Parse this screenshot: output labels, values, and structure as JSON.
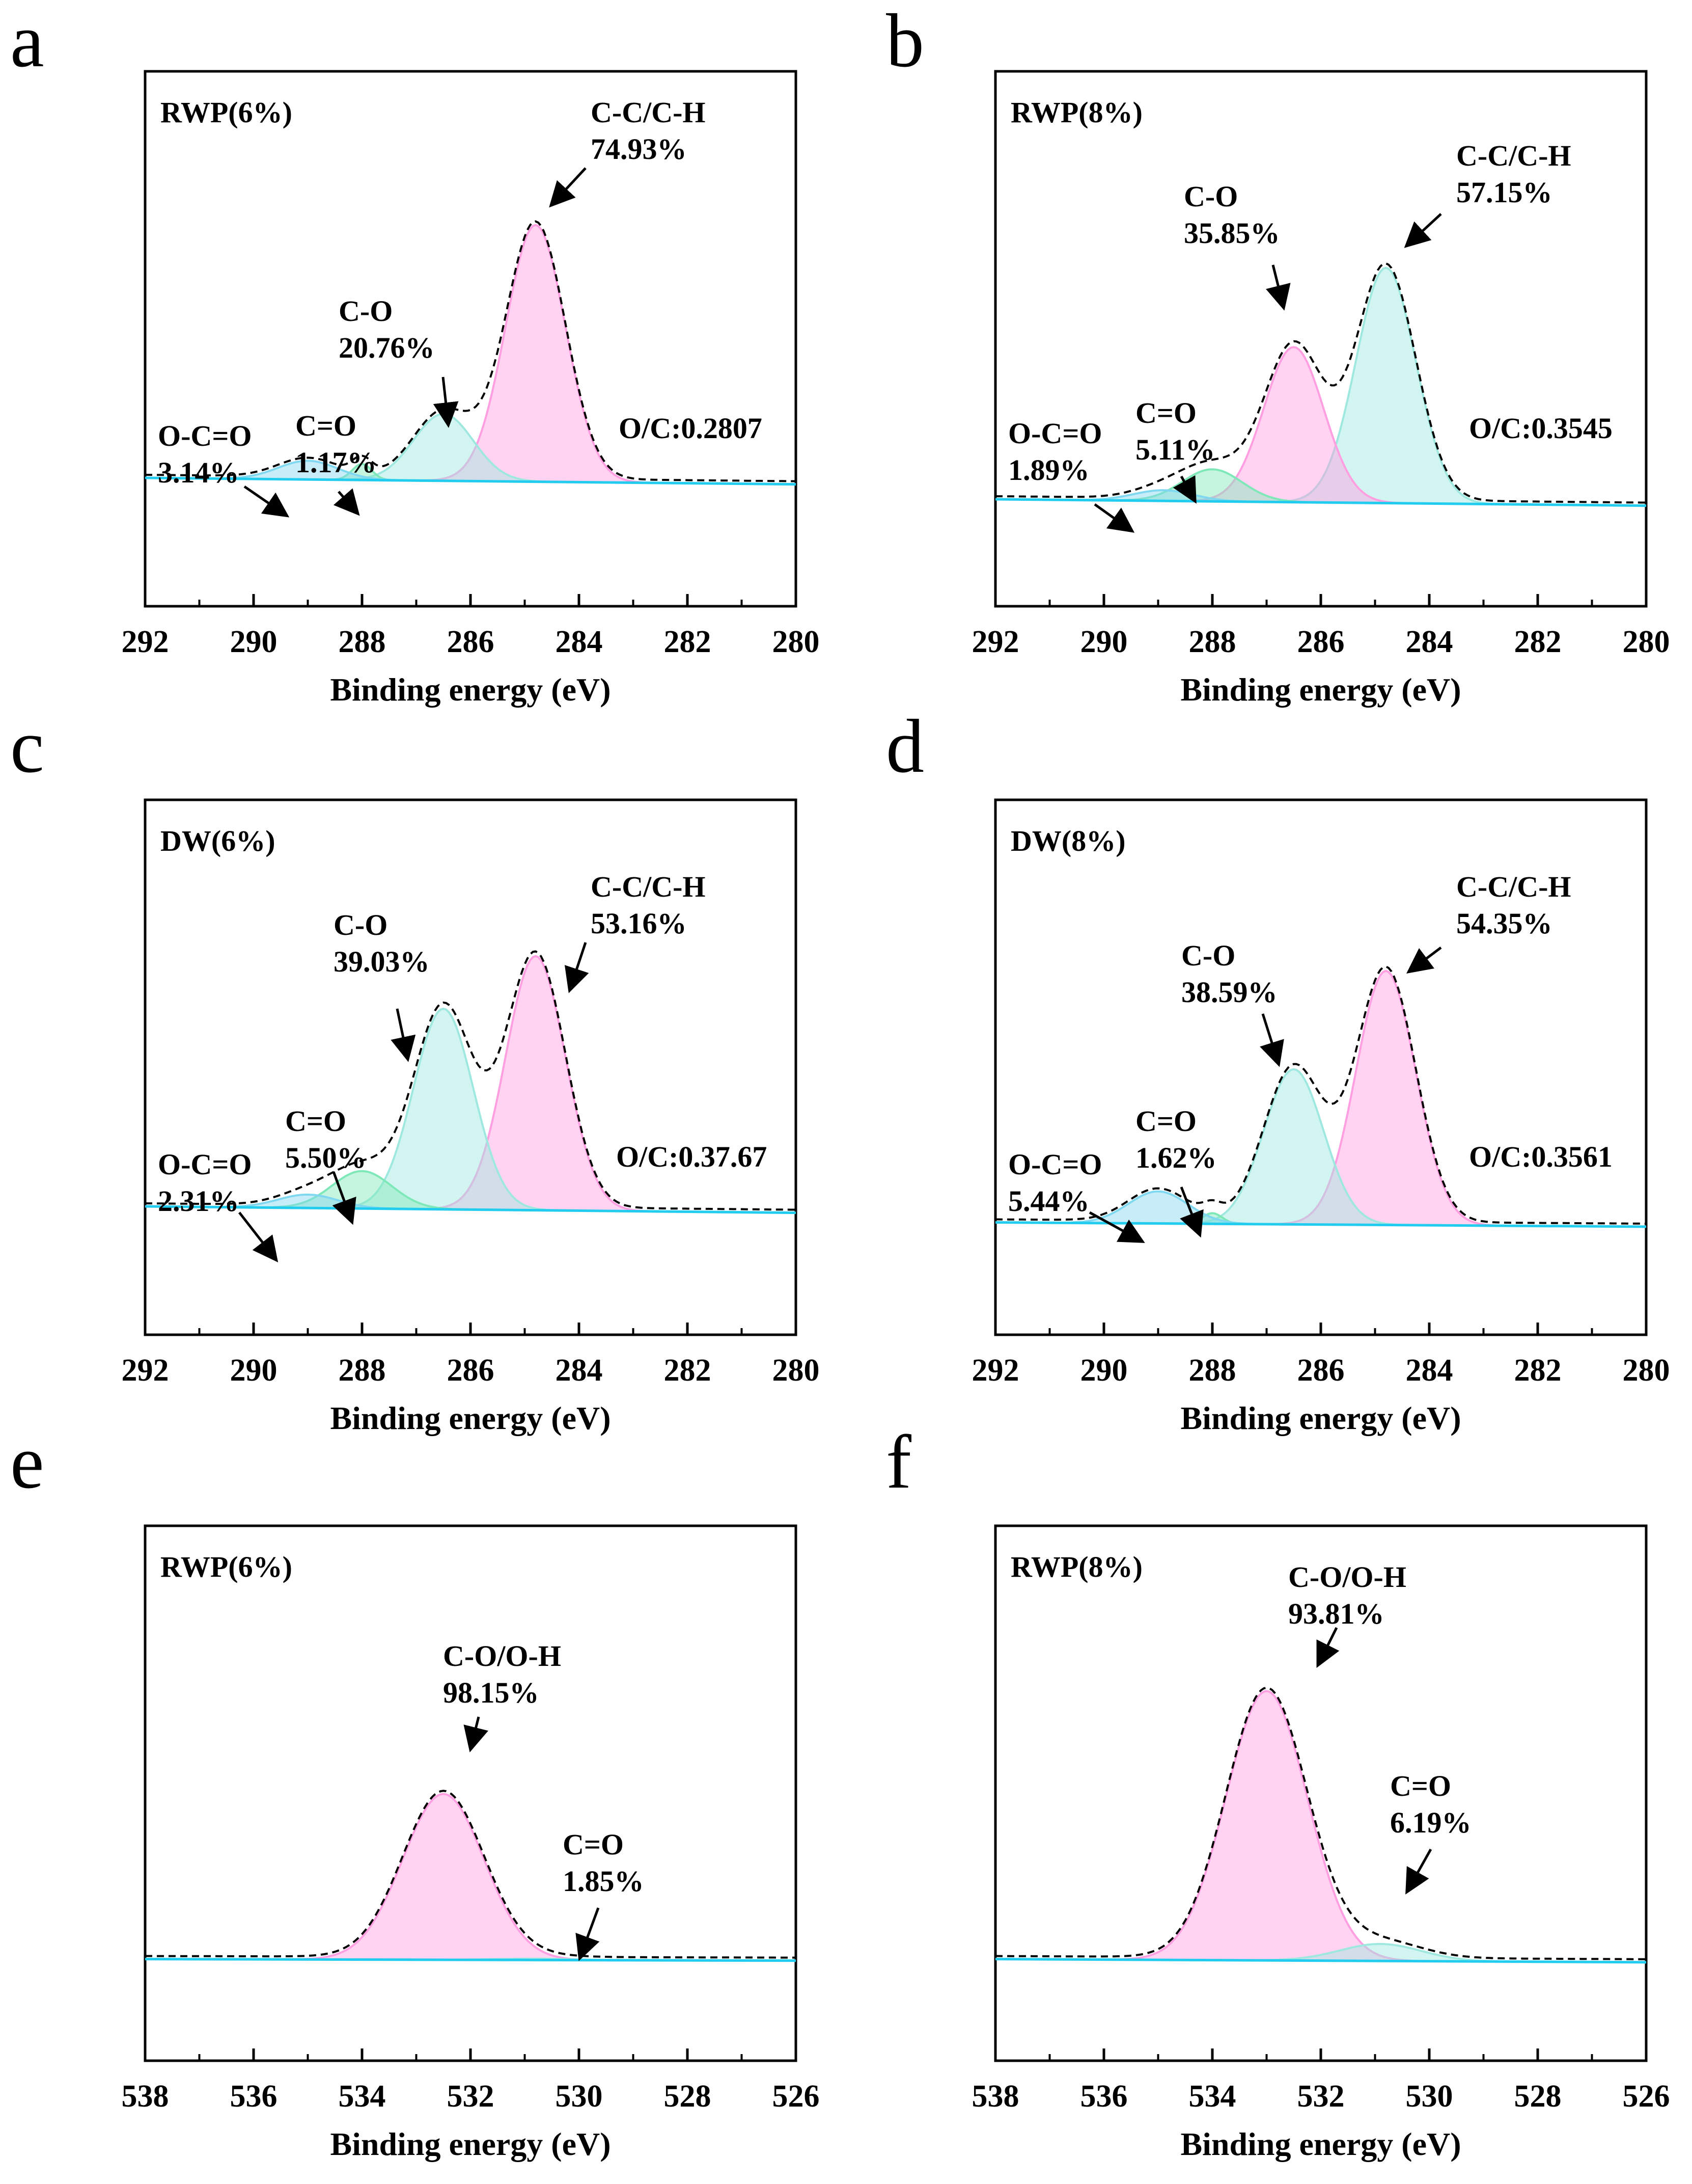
{
  "chart_data": [
    {
      "panel": "a",
      "type": "line",
      "sample": "RWP(6%)",
      "xlabel": "Binding energy (eV)",
      "xlim": [
        292,
        280
      ],
      "x_ticks": [
        "292",
        "290",
        "288",
        "286",
        "284",
        "282",
        "280"
      ],
      "ratio": "O/C:0.2807",
      "peaks": [
        {
          "name": "C-C/C-H",
          "pct": "74.93%",
          "center": 284.8,
          "height": 0.96,
          "color": "#ff9ee0"
        },
        {
          "name": "C-O",
          "pct": "20.76%",
          "center": 286.5,
          "height": 0.25,
          "color": "#9ee8e0"
        },
        {
          "name": "C=O",
          "pct": "1.17%",
          "center": 288.0,
          "height": 0.06,
          "color": "#7ee8b8"
        },
        {
          "name": "O-C=O",
          "pct": "3.14%",
          "center": 289.0,
          "height": 0.07,
          "color": "#80d8f0"
        }
      ]
    },
    {
      "panel": "b",
      "type": "line",
      "sample": "RWP(8%)",
      "xlabel": "Binding energy (eV)",
      "xlim": [
        292,
        280
      ],
      "x_ticks": [
        "292",
        "290",
        "288",
        "286",
        "284",
        "282",
        "280"
      ],
      "ratio": "O/C:0.3545",
      "peaks": [
        {
          "name": "C-C/C-H",
          "pct": "57.15%",
          "center": 284.8,
          "height": 0.88,
          "color": "#9ee8e0"
        },
        {
          "name": "C-O",
          "pct": "35.85%",
          "center": 286.5,
          "height": 0.58,
          "color": "#ff9ee0"
        },
        {
          "name": "C=O",
          "pct": "5.11%",
          "center": 288.0,
          "height": 0.12,
          "color": "#7ee8b8"
        },
        {
          "name": "O-C=O",
          "pct": "1.89%",
          "center": 288.9,
          "height": 0.04,
          "color": "#80d8f0"
        }
      ]
    },
    {
      "panel": "c",
      "type": "line",
      "sample": "DW(6%)",
      "xlabel": "Binding energy (eV)",
      "xlim": [
        292,
        280
      ],
      "x_ticks": [
        "292",
        "290",
        "288",
        "286",
        "284",
        "282",
        "280"
      ],
      "ratio": "O/C:0.37.67",
      "peaks": [
        {
          "name": "C-C/C-H",
          "pct": "53.16%",
          "center": 284.8,
          "height": 0.95,
          "color": "#ff9ee0"
        },
        {
          "name": "C-O",
          "pct": "39.03%",
          "center": 286.5,
          "height": 0.75,
          "color": "#9ee8e0"
        },
        {
          "name": "C=O",
          "pct": "5.50%",
          "center": 288.0,
          "height": 0.14,
          "color": "#7ee8b8"
        },
        {
          "name": "O-C=O",
          "pct": "2.31%",
          "center": 289.0,
          "height": 0.05,
          "color": "#80d8f0"
        }
      ]
    },
    {
      "panel": "d",
      "type": "line",
      "sample": "DW(8%)",
      "xlabel": "Binding energy (eV)",
      "xlim": [
        292,
        280
      ],
      "x_ticks": [
        "292",
        "290",
        "288",
        "286",
        "284",
        "282",
        "280"
      ],
      "ratio": "O/C:0.3561",
      "peaks": [
        {
          "name": "C-C/C-H",
          "pct": "54.35%",
          "center": 284.8,
          "height": 0.95,
          "color": "#ff9ee0"
        },
        {
          "name": "C-O",
          "pct": "38.59%",
          "center": 286.5,
          "height": 0.58,
          "color": "#9ee8e0"
        },
        {
          "name": "C=O",
          "pct": "1.62%",
          "center": 288.0,
          "height": 0.04,
          "color": "#7ee8b8"
        },
        {
          "name": "O-C=O",
          "pct": "5.44%",
          "center": 289.0,
          "height": 0.12,
          "color": "#80d8f0"
        }
      ]
    },
    {
      "panel": "e",
      "type": "line",
      "sample": "RWP(6%)",
      "xlabel": "Binding energy (eV)",
      "xlim": [
        538,
        526
      ],
      "x_ticks": [
        "538",
        "536",
        "534",
        "532",
        "530",
        "528",
        "526"
      ],
      "ratio": "",
      "peaks": [
        {
          "name": "C-O/O-H",
          "pct": "98.15%",
          "center": 532.5,
          "height": 0.62,
          "color": "#ff9ee0"
        },
        {
          "name": "C=O",
          "pct": "1.85%",
          "center": 530.8,
          "height": 0.005,
          "color": "#9ee8e0"
        }
      ]
    },
    {
      "panel": "f",
      "type": "line",
      "sample": "RWP(8%)",
      "xlabel": "Binding energy (eV)",
      "xlim": [
        538,
        526
      ],
      "x_ticks": [
        "538",
        "536",
        "534",
        "532",
        "530",
        "528",
        "526"
      ],
      "ratio": "",
      "peaks": [
        {
          "name": "C-O/O-H",
          "pct": "93.81%",
          "center": 533.0,
          "height": 0.95,
          "color": "#ff9ee0"
        },
        {
          "name": "C=O",
          "pct": "6.19%",
          "center": 530.9,
          "height": 0.06,
          "color": "#9ee8e0"
        }
      ]
    }
  ]
}
